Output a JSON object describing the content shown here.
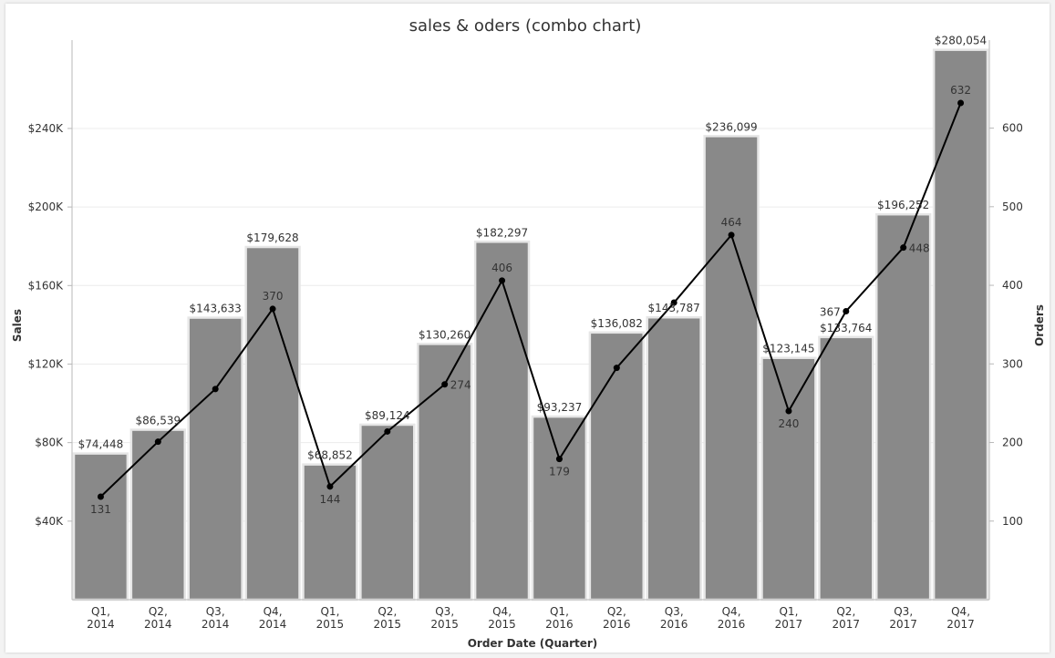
{
  "chart_data": {
    "type": "bar",
    "title": "sales & oders (combo chart)",
    "xlabel": "Order Date (Quarter)",
    "ylabel": "Sales",
    "y2label": "Orders",
    "ylim": [
      0,
      285000
    ],
    "y2lim": [
      0,
      712
    ],
    "yticks": [
      {
        "value": 40000,
        "label": "$40K"
      },
      {
        "value": 80000,
        "label": "$80K"
      },
      {
        "value": 120000,
        "label": "$120K"
      },
      {
        "value": 160000,
        "label": "$160K"
      },
      {
        "value": 200000,
        "label": "$200K"
      },
      {
        "value": 240000,
        "label": "$240K"
      }
    ],
    "y2ticks": [
      {
        "value": 100,
        "label": "100"
      },
      {
        "value": 200,
        "label": "200"
      },
      {
        "value": 300,
        "label": "300"
      },
      {
        "value": 400,
        "label": "400"
      },
      {
        "value": 500,
        "label": "500"
      },
      {
        "value": 600,
        "label": "600"
      }
    ],
    "categories": [
      [
        "Q1,",
        "2014"
      ],
      [
        "Q2,",
        "2014"
      ],
      [
        "Q3,",
        "2014"
      ],
      [
        "Q4,",
        "2014"
      ],
      [
        "Q1,",
        "2015"
      ],
      [
        "Q2,",
        "2015"
      ],
      [
        "Q3,",
        "2015"
      ],
      [
        "Q4,",
        "2015"
      ],
      [
        "Q1,",
        "2016"
      ],
      [
        "Q2,",
        "2016"
      ],
      [
        "Q3,",
        "2016"
      ],
      [
        "Q4,",
        "2016"
      ],
      [
        "Q1,",
        "2017"
      ],
      [
        "Q2,",
        "2017"
      ],
      [
        "Q3,",
        "2017"
      ],
      [
        "Q4,",
        "2017"
      ]
    ],
    "series": [
      {
        "kind": "bar",
        "axis": "left",
        "values": [
          74448,
          86539,
          143633,
          179628,
          68852,
          89124,
          130260,
          182297,
          93237,
          136082,
          143787,
          236099,
          123145,
          133764,
          196252,
          280054
        ],
        "labels": [
          "$74,448",
          "$86,539",
          "$143,633",
          "$179,628",
          "$68,852",
          "$89,124",
          "$130,260",
          "$182,297",
          "$93,237",
          "$136,082",
          "$143,787",
          "$236,099",
          "$123,145",
          "$133,764",
          "$196,252",
          "$280,054"
        ]
      },
      {
        "kind": "line",
        "axis": "right",
        "values": [
          131,
          201,
          268,
          370,
          144,
          214,
          274,
          406,
          179,
          295,
          378,
          464,
          240,
          367,
          448,
          632
        ],
        "labels": [
          "131",
          "",
          "",
          "370",
          "144",
          "",
          "274",
          "406",
          "179",
          "",
          "",
          "464",
          "240",
          "367",
          "448",
          "632"
        ]
      }
    ],
    "grid": true,
    "colors": {
      "bar": "#898989",
      "bar_border": "#e6e6e6",
      "line": "#000000",
      "grid": "#ececec",
      "axis": "#b8b8b8",
      "text": "#333333"
    }
  }
}
